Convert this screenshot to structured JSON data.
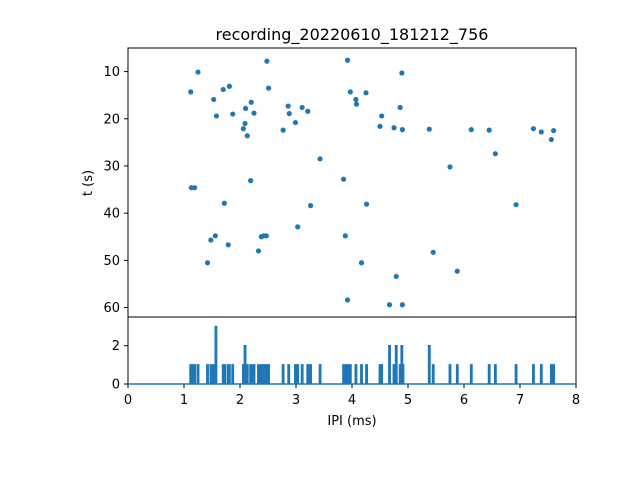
{
  "chart_data": [
    {
      "type": "scatter",
      "title": "recording_20220610_181212_756",
      "xlabel": "",
      "ylabel": "t (s)",
      "xlim": [
        0,
        8
      ],
      "ylim": [
        62,
        5
      ],
      "y_inverted": true,
      "yticks": [
        10,
        20,
        30,
        40,
        50,
        60
      ],
      "grid": false,
      "color": "#1f77b4",
      "points": [
        {
          "x": 1.12,
          "y": 14.3
        },
        {
          "x": 1.25,
          "y": 10.1
        },
        {
          "x": 1.53,
          "y": 15.9
        },
        {
          "x": 1.58,
          "y": 19.4
        },
        {
          "x": 1.7,
          "y": 13.8
        },
        {
          "x": 1.81,
          "y": 13.1
        },
        {
          "x": 1.87,
          "y": 19.0
        },
        {
          "x": 2.06,
          "y": 22.1
        },
        {
          "x": 2.09,
          "y": 21.0
        },
        {
          "x": 2.1,
          "y": 17.8
        },
        {
          "x": 2.13,
          "y": 23.6
        },
        {
          "x": 2.2,
          "y": 16.5
        },
        {
          "x": 2.25,
          "y": 18.8
        },
        {
          "x": 2.48,
          "y": 7.8
        },
        {
          "x": 2.51,
          "y": 13.5
        },
        {
          "x": 2.77,
          "y": 22.4
        },
        {
          "x": 2.86,
          "y": 17.3
        },
        {
          "x": 2.88,
          "y": 18.9
        },
        {
          "x": 2.99,
          "y": 20.8
        },
        {
          "x": 3.11,
          "y": 17.6
        },
        {
          "x": 3.21,
          "y": 18.4
        },
        {
          "x": 3.43,
          "y": 28.5
        },
        {
          "x": 3.92,
          "y": 7.6
        },
        {
          "x": 3.97,
          "y": 14.3
        },
        {
          "x": 4.07,
          "y": 15.9
        },
        {
          "x": 4.08,
          "y": 16.9
        },
        {
          "x": 4.25,
          "y": 14.5
        },
        {
          "x": 4.5,
          "y": 21.6
        },
        {
          "x": 4.53,
          "y": 19.4
        },
        {
          "x": 4.75,
          "y": 21.9
        },
        {
          "x": 4.86,
          "y": 17.6
        },
        {
          "x": 4.89,
          "y": 10.3
        },
        {
          "x": 4.9,
          "y": 22.3
        },
        {
          "x": 5.38,
          "y": 22.2
        },
        {
          "x": 6.13,
          "y": 22.3
        },
        {
          "x": 6.45,
          "y": 22.4
        },
        {
          "x": 6.56,
          "y": 27.4
        },
        {
          "x": 7.24,
          "y": 22.1
        },
        {
          "x": 7.38,
          "y": 22.8
        },
        {
          "x": 7.56,
          "y": 24.4
        },
        {
          "x": 7.6,
          "y": 22.5
        },
        {
          "x": 1.13,
          "y": 34.6
        },
        {
          "x": 1.19,
          "y": 34.6
        },
        {
          "x": 1.72,
          "y": 37.9
        },
        {
          "x": 2.19,
          "y": 33.1
        },
        {
          "x": 3.26,
          "y": 38.4
        },
        {
          "x": 3.85,
          "y": 32.8
        },
        {
          "x": 4.26,
          "y": 38.1
        },
        {
          "x": 5.75,
          "y": 30.2
        },
        {
          "x": 6.93,
          "y": 38.2
        },
        {
          "x": 1.48,
          "y": 45.7
        },
        {
          "x": 1.56,
          "y": 44.8
        },
        {
          "x": 1.79,
          "y": 46.7
        },
        {
          "x": 2.33,
          "y": 48.0
        },
        {
          "x": 2.38,
          "y": 45.0
        },
        {
          "x": 2.42,
          "y": 44.8
        },
        {
          "x": 2.47,
          "y": 44.8
        },
        {
          "x": 3.03,
          "y": 42.9
        },
        {
          "x": 3.88,
          "y": 44.8
        },
        {
          "x": 1.42,
          "y": 50.5
        },
        {
          "x": 4.17,
          "y": 50.5
        },
        {
          "x": 4.79,
          "y": 53.4
        },
        {
          "x": 5.45,
          "y": 48.3
        },
        {
          "x": 5.88,
          "y": 52.3
        },
        {
          "x": 3.92,
          "y": 58.4
        },
        {
          "x": 4.67,
          "y": 59.4
        },
        {
          "x": 4.9,
          "y": 59.4
        }
      ]
    },
    {
      "type": "line",
      "title": "",
      "xlabel": "IPI (ms)",
      "ylabel": "",
      "xlim": [
        0,
        8
      ],
      "ylim": [
        0,
        3.5
      ],
      "xticks": [
        0,
        1,
        2,
        3,
        4,
        5,
        6,
        7,
        8
      ],
      "yticks": [
        0,
        2
      ],
      "grid": false,
      "color": "#1f77b4",
      "description": "count histogram of IPI values",
      "spikes": [
        {
          "x": 1.12,
          "y": 1
        },
        {
          "x": 1.14,
          "y": 1
        },
        {
          "x": 1.19,
          "y": 1
        },
        {
          "x": 1.25,
          "y": 1
        },
        {
          "x": 1.42,
          "y": 1
        },
        {
          "x": 1.48,
          "y": 1
        },
        {
          "x": 1.53,
          "y": 1
        },
        {
          "x": 1.57,
          "y": 3
        },
        {
          "x": 1.7,
          "y": 1
        },
        {
          "x": 1.73,
          "y": 1
        },
        {
          "x": 1.79,
          "y": 1
        },
        {
          "x": 1.81,
          "y": 1
        },
        {
          "x": 1.87,
          "y": 1
        },
        {
          "x": 2.06,
          "y": 1
        },
        {
          "x": 2.09,
          "y": 2
        },
        {
          "x": 2.13,
          "y": 1
        },
        {
          "x": 2.19,
          "y": 1
        },
        {
          "x": 2.21,
          "y": 1
        },
        {
          "x": 2.25,
          "y": 1
        },
        {
          "x": 2.33,
          "y": 1
        },
        {
          "x": 2.38,
          "y": 1
        },
        {
          "x": 2.42,
          "y": 1
        },
        {
          "x": 2.47,
          "y": 1
        },
        {
          "x": 2.51,
          "y": 1
        },
        {
          "x": 2.77,
          "y": 1
        },
        {
          "x": 2.87,
          "y": 1
        },
        {
          "x": 2.99,
          "y": 1
        },
        {
          "x": 3.03,
          "y": 1
        },
        {
          "x": 3.11,
          "y": 1
        },
        {
          "x": 3.21,
          "y": 1
        },
        {
          "x": 3.26,
          "y": 1
        },
        {
          "x": 3.43,
          "y": 1
        },
        {
          "x": 3.85,
          "y": 1
        },
        {
          "x": 3.88,
          "y": 1
        },
        {
          "x": 3.92,
          "y": 1
        },
        {
          "x": 3.97,
          "y": 1
        },
        {
          "x": 4.07,
          "y": 1
        },
        {
          "x": 4.17,
          "y": 1
        },
        {
          "x": 4.26,
          "y": 1
        },
        {
          "x": 4.5,
          "y": 1
        },
        {
          "x": 4.53,
          "y": 1
        },
        {
          "x": 4.67,
          "y": 2
        },
        {
          "x": 4.75,
          "y": 1
        },
        {
          "x": 4.79,
          "y": 2
        },
        {
          "x": 4.86,
          "y": 1
        },
        {
          "x": 4.89,
          "y": 2
        },
        {
          "x": 4.91,
          "y": 1
        },
        {
          "x": 5.38,
          "y": 2
        },
        {
          "x": 5.45,
          "y": 1
        },
        {
          "x": 5.75,
          "y": 1
        },
        {
          "x": 5.88,
          "y": 1
        },
        {
          "x": 6.13,
          "y": 1
        },
        {
          "x": 6.45,
          "y": 1
        },
        {
          "x": 6.56,
          "y": 1
        },
        {
          "x": 6.93,
          "y": 1
        },
        {
          "x": 7.24,
          "y": 1
        },
        {
          "x": 7.38,
          "y": 1
        },
        {
          "x": 7.56,
          "y": 1
        },
        {
          "x": 7.6,
          "y": 1
        }
      ]
    }
  ]
}
